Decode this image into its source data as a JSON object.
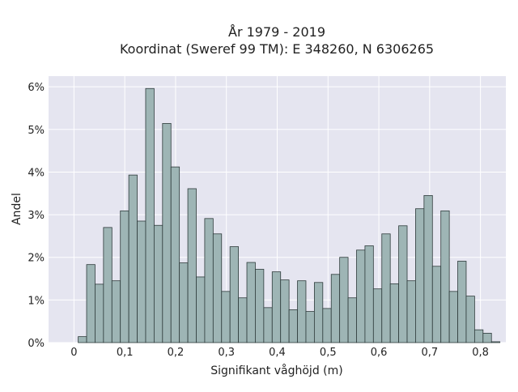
{
  "chart_data": {
    "type": "bar",
    "title": "År 1979 - 2019",
    "subtitle": "Koordinat (Sweref 99 TM): E 348260, N 6306265",
    "xlabel": "Signifikant våghöjd (m)",
    "ylabel": "Andel",
    "xlim": [
      -0.05,
      0.85
    ],
    "ylim": [
      0,
      6.25
    ],
    "x_ticks": [
      {
        "value": 0,
        "label": "0"
      },
      {
        "value": 0.1,
        "label": "0,1"
      },
      {
        "value": 0.2,
        "label": "0,2"
      },
      {
        "value": 0.3,
        "label": "0,3"
      },
      {
        "value": 0.4,
        "label": "0,4"
      },
      {
        "value": 0.5,
        "label": "0,5"
      },
      {
        "value": 0.6,
        "label": "0,6"
      },
      {
        "value": 0.7,
        "label": "0,7"
      },
      {
        "value": 0.8,
        "label": "0,8"
      }
    ],
    "y_ticks": [
      {
        "value": 0,
        "label": "0%"
      },
      {
        "value": 1,
        "label": "1%"
      },
      {
        "value": 2,
        "label": "2%"
      },
      {
        "value": 3,
        "label": "3%"
      },
      {
        "value": 4,
        "label": "4%"
      },
      {
        "value": 5,
        "label": "5%"
      },
      {
        "value": 6,
        "label": "6%"
      }
    ],
    "bin_width": 0.0166,
    "bin_start": 0.0083,
    "values": [
      0.14,
      1.83,
      1.37,
      2.7,
      1.45,
      3.09,
      3.93,
      2.85,
      5.96,
      2.75,
      5.14,
      4.12,
      1.87,
      3.61,
      1.54,
      2.91,
      2.55,
      1.2,
      2.25,
      1.05,
      1.88,
      1.72,
      0.82,
      1.66,
      1.47,
      0.77,
      1.45,
      0.73,
      1.41,
      0.8,
      1.6,
      2.0,
      1.05,
      2.17,
      2.27,
      1.26,
      2.55,
      1.38,
      2.74,
      1.45,
      3.14,
      3.45,
      1.79,
      3.09,
      1.2,
      1.91,
      1.09,
      0.3,
      0.22,
      0.02
    ],
    "grid": true,
    "units": "%",
    "colors": {
      "bar_fill": "#9eb5b5",
      "bar_stroke": "#2e3b3b",
      "plot_background": "#e5e5f0",
      "grid": "#ffffff"
    }
  }
}
